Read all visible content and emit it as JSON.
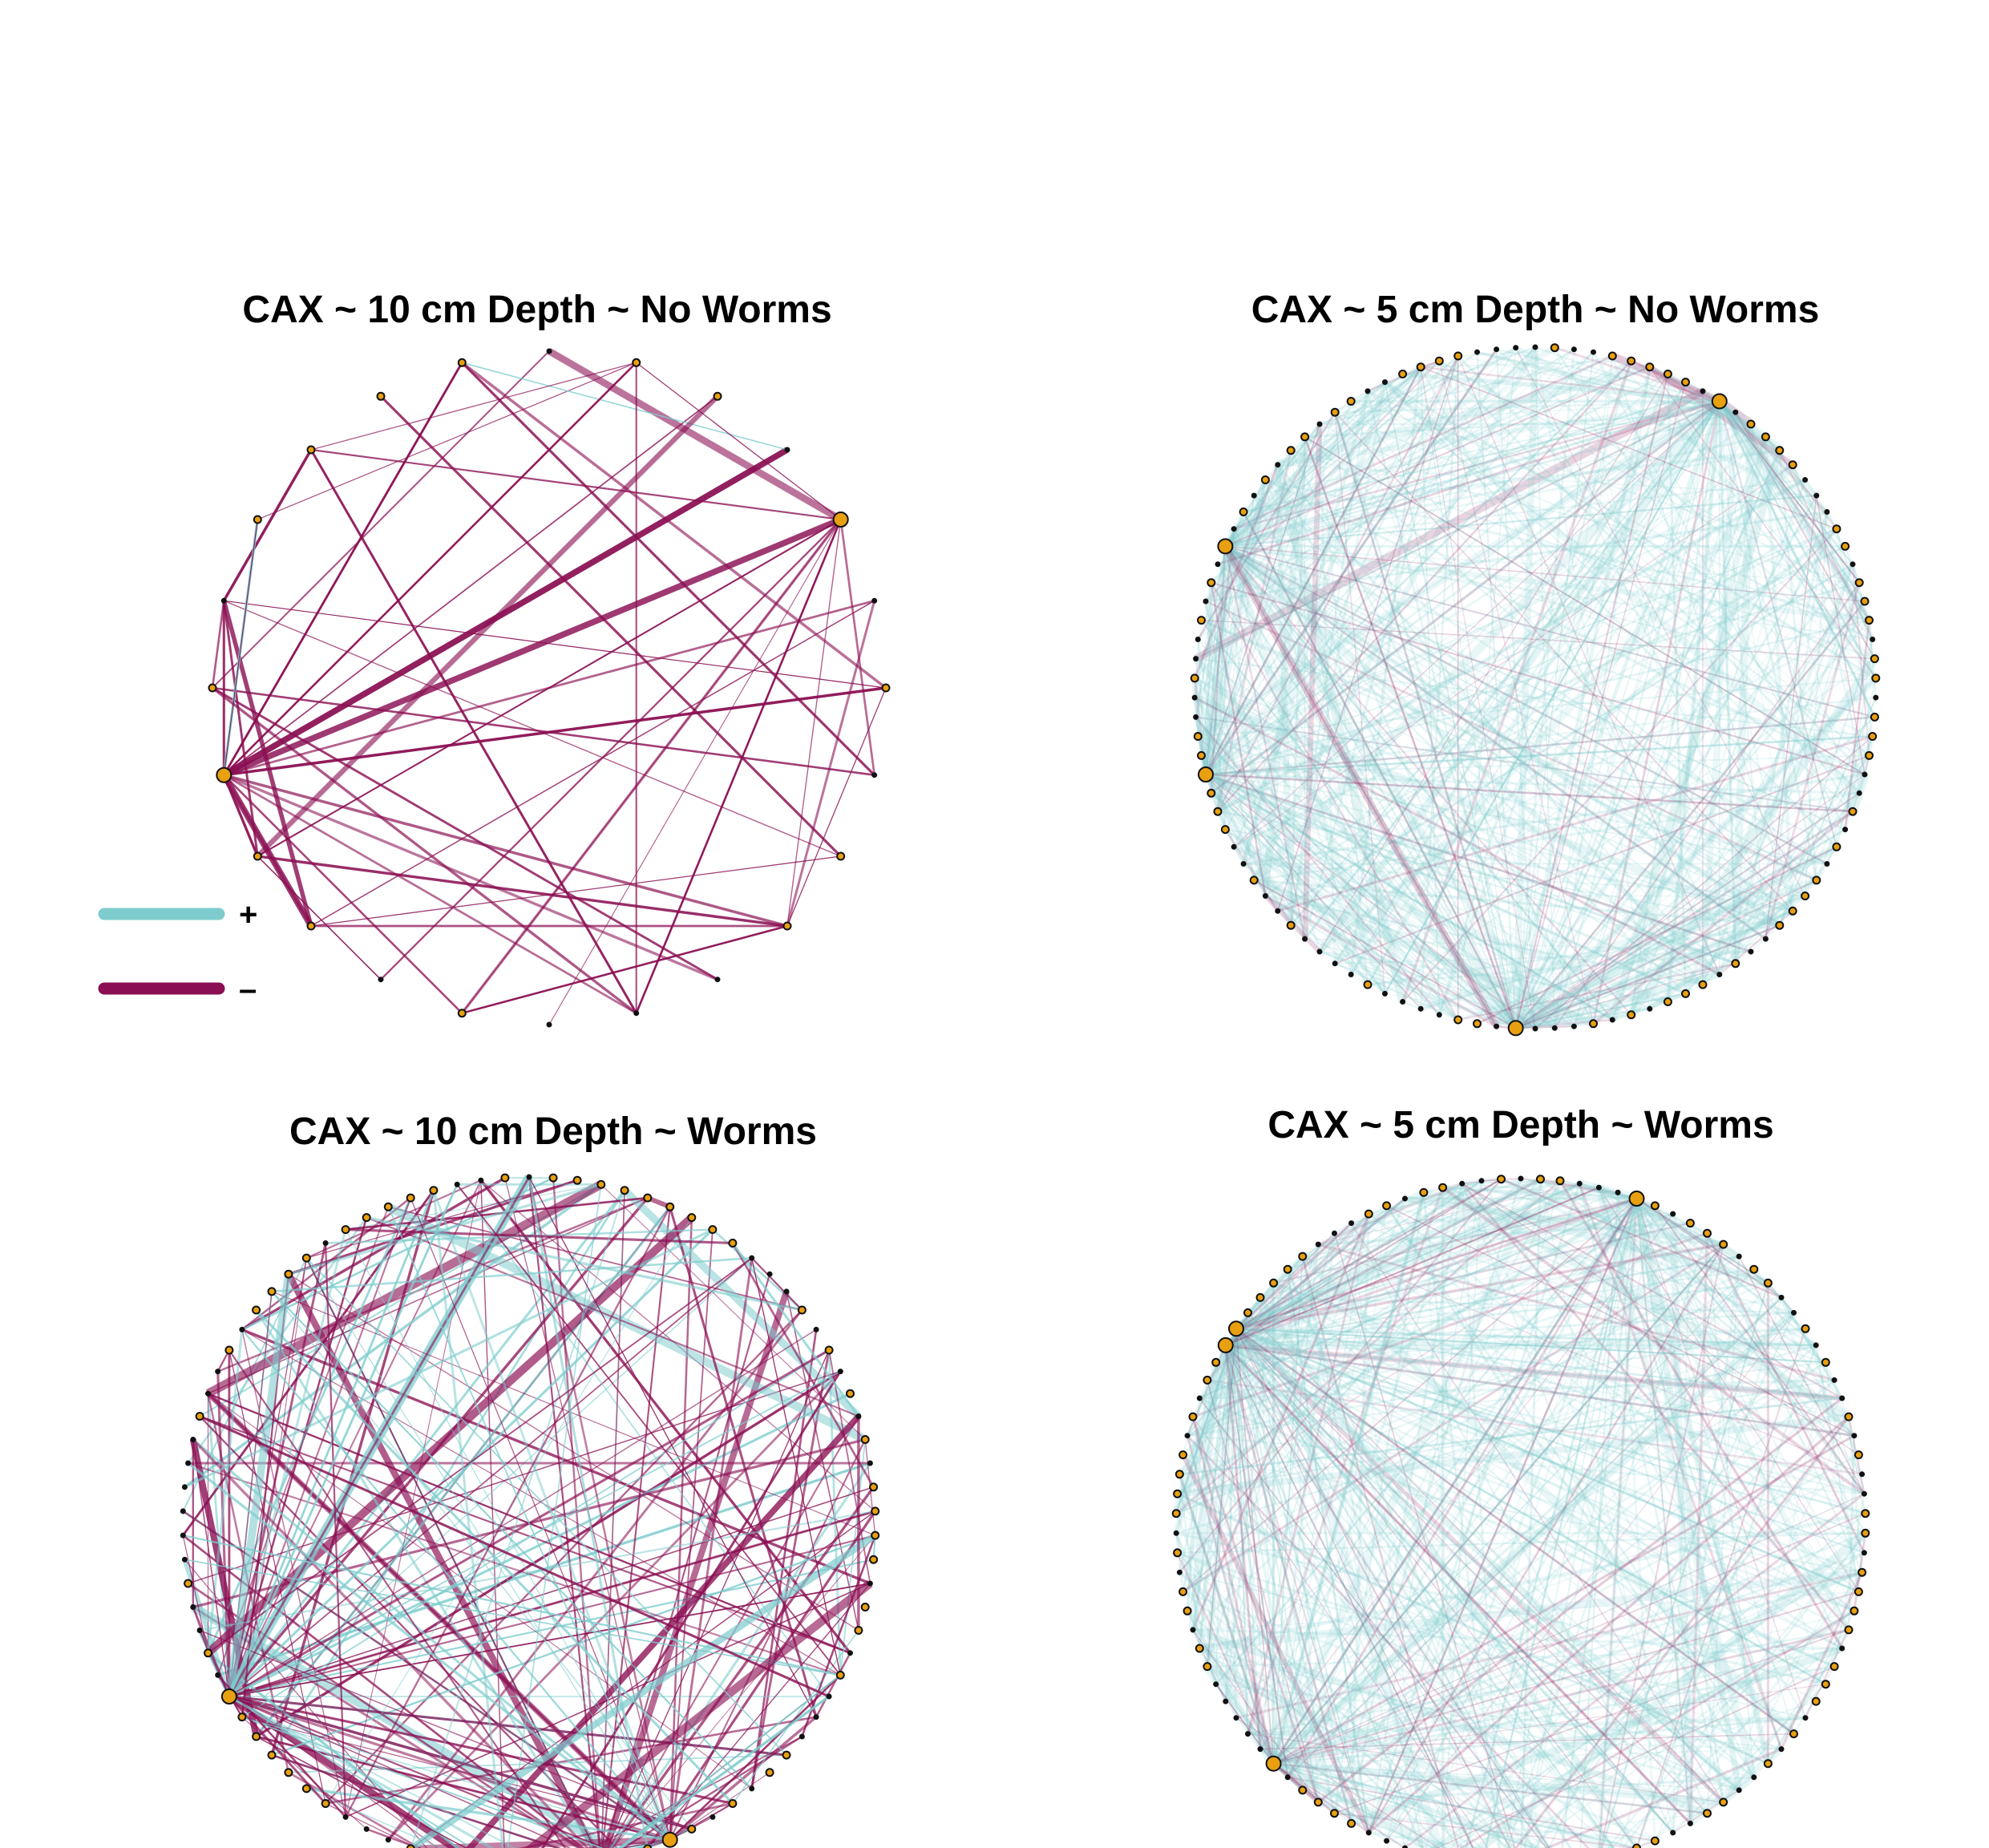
{
  "colors": {
    "positive": "#7ecccd",
    "negative": "#8a0e52",
    "node_fill": "#e8a010",
    "node_stroke": "#111111",
    "background": "#ffffff"
  },
  "legend": {
    "positive_label": "+",
    "negative_label": "–"
  },
  "panels": [
    {
      "id": "cax-10cm-no-worms",
      "title": "CAX ~ 10 cm Depth ~ No Worms",
      "node_count": 24,
      "edge_style": "sparse, mostly negative",
      "positive_share": 0.05,
      "edge_opacity": 0.95
    },
    {
      "id": "cax-5cm-no-worms",
      "title": "CAX ~ 5 cm Depth ~ No Worms",
      "node_count": 110,
      "edge_style": "dense, mostly positive",
      "positive_share": 0.85,
      "edge_opacity": 0.22
    },
    {
      "id": "cax-10cm-worms",
      "title": "CAX ~ 10 cm Depth ~ Worms",
      "node_count": 90,
      "edge_style": "moderate, mixed",
      "positive_share": 0.35,
      "edge_opacity": 0.85
    },
    {
      "id": "cax-5cm-worms",
      "title": "CAX ~ 5 cm Depth ~ Worms",
      "node_count": 110,
      "edge_style": "dense, mostly positive",
      "positive_share": 0.8,
      "edge_opacity": 0.22
    }
  ]
}
